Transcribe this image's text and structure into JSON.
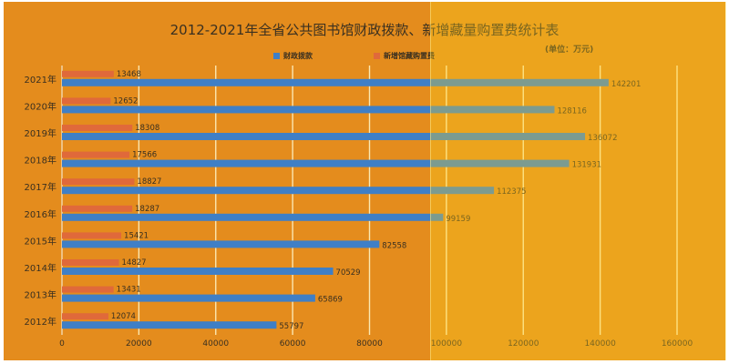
{
  "chart_data": {
    "type": "bar",
    "orientation": "horizontal",
    "title": "2012-2021年全省公共图书馆财政拨款、新增藏量购置费统计表",
    "unit_label": "(单位：万元)",
    "categories": [
      "2021年",
      "2020年",
      "2019年",
      "2018年",
      "2017年",
      "2016年",
      "2015年",
      "2014年",
      "2013年",
      "2012年"
    ],
    "series": [
      {
        "name": "财政拨款",
        "color": "#3f7fc6",
        "values": [
          142201,
          128116,
          136072,
          131931,
          112375,
          99159,
          82558,
          70529,
          65869,
          55797
        ]
      },
      {
        "name": "新增馆藏购置费",
        "color": "#e0693a",
        "values": [
          13468,
          12652,
          18308,
          17566,
          18827,
          18287,
          15421,
          14827,
          13431,
          12074
        ]
      }
    ],
    "xlim": [
      0,
      160000
    ],
    "xticks": [
      0,
      20000,
      40000,
      60000,
      80000,
      100000,
      120000,
      140000,
      160000
    ],
    "grid": true,
    "legend_position": "top"
  }
}
